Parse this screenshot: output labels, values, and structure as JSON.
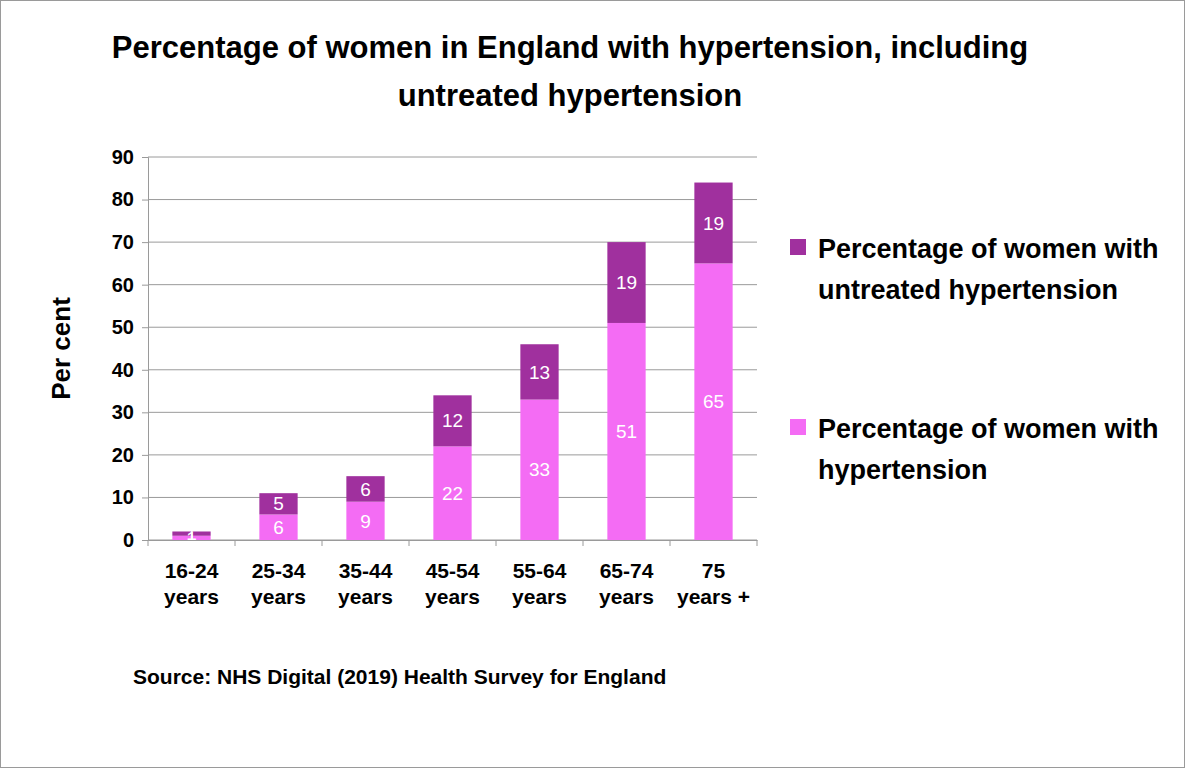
{
  "chart_data": {
    "type": "bar",
    "stacked": true,
    "data_labels": true,
    "grid": true,
    "legend": "right",
    "title": "Percentage of women in England with hypertension, including untreated hypertension",
    "y_label": "Per cent",
    "source": "Source: NHS Digital (2019) Health Survey for England",
    "categories": [
      "16-24 years",
      "25-34 years",
      "35-44 years",
      "45-54 years",
      "55-64 years",
      "65-74 years",
      "75 years +"
    ],
    "series": [
      {
        "name": "Percentage of women with hypertension",
        "color": "#f46cf4",
        "values": [
          1,
          6,
          9,
          22,
          33,
          51,
          65
        ]
      },
      {
        "name": "Percentage of women with untreated hypertension",
        "color": "#a0309e",
        "values": [
          1,
          5,
          6,
          12,
          13,
          19,
          19
        ]
      }
    ],
    "ylim": [
      0,
      90
    ],
    "yticks": [
      0,
      10,
      20,
      30,
      40,
      50,
      60,
      70,
      80,
      90
    ]
  }
}
